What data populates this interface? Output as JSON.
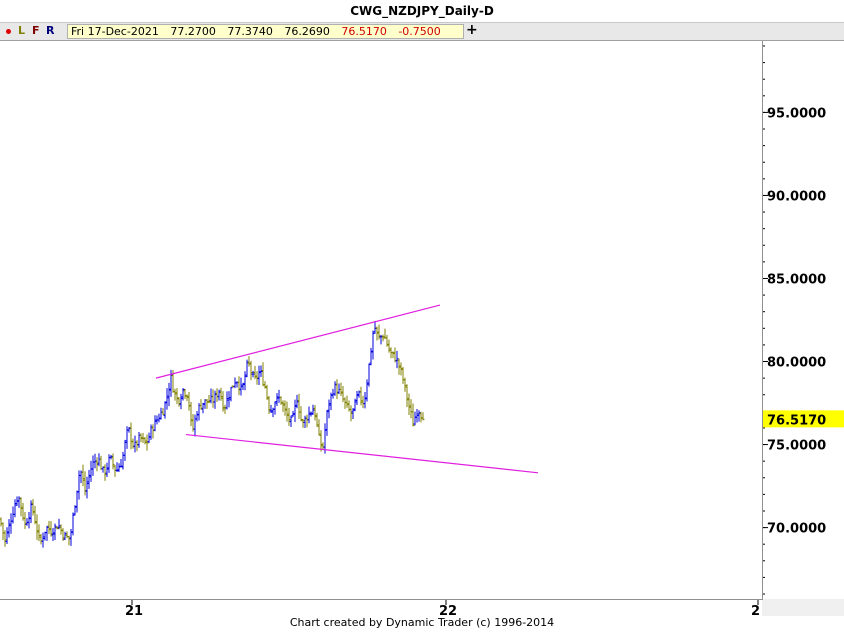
{
  "window": {
    "title": "CWG_NZDJPY_Daily-D"
  },
  "info_bar": {
    "buttons": [
      {
        "label": "L",
        "color": "#808000"
      },
      {
        "label": "F",
        "color": "#800000"
      },
      {
        "label": "R",
        "color": "#000080"
      }
    ],
    "dot_color": "#e00000",
    "date": "Fri 17-Dec-2021",
    "open": "77.2700",
    "high": "77.3740",
    "low": "76.2690",
    "close": "76.5170",
    "change": "-0.7500",
    "plus_label": "+"
  },
  "footer": {
    "text": "Chart created by Dynamic Trader  (c) 1996-2014"
  },
  "chart_data": {
    "type": "ohlc",
    "title": "CWG_NZDJPY_Daily-D",
    "y_ticks": [
      "95.0000",
      "90.0000",
      "85.0000",
      "80.0000",
      "75.0000",
      "70.0000"
    ],
    "y_range": [
      65.7,
      99.3
    ],
    "x_ticks": [
      "21",
      "22",
      "2"
    ],
    "last_price": "76.5170",
    "last_price_color": "#ffff00",
    "up_bar_color": "#0000dd",
    "down_bar_color": "#808000",
    "trendline_color": "#e020e0",
    "anchors": [
      [
        0,
        70.5
      ],
      [
        5,
        69.2
      ],
      [
        12,
        70.8
      ],
      [
        18,
        72.0
      ],
      [
        25,
        70.2
      ],
      [
        32,
        71.3
      ],
      [
        40,
        69.0
      ],
      [
        46,
        70.0
      ],
      [
        52,
        69.8
      ],
      [
        58,
        70.2
      ],
      [
        64,
        69.5
      ],
      [
        70,
        69.3
      ],
      [
        75,
        71.5
      ],
      [
        80,
        73.6
      ],
      [
        85,
        72.2
      ],
      [
        92,
        73.8
      ],
      [
        98,
        74.2
      ],
      [
        104,
        73.2
      ],
      [
        110,
        74.2
      ],
      [
        116,
        73.4
      ],
      [
        122,
        74.0
      ],
      [
        128,
        76.0
      ],
      [
        134,
        74.8
      ],
      [
        140,
        75.4
      ],
      [
        146,
        75.0
      ],
      [
        152,
        76.0
      ],
      [
        158,
        76.6
      ],
      [
        164,
        77.2
      ],
      [
        168,
        78.2
      ],
      [
        171,
        79.0
      ],
      [
        174,
        78.2
      ],
      [
        178,
        77.6
      ],
      [
        183,
        78.3
      ],
      [
        188,
        78.0
      ],
      [
        192,
        75.7
      ],
      [
        197,
        77.0
      ],
      [
        202,
        77.5
      ],
      [
        208,
        77.6
      ],
      [
        214,
        77.7
      ],
      [
        219,
        78.3
      ],
      [
        224,
        77.2
      ],
      [
        230,
        78.2
      ],
      [
        236,
        79.0
      ],
      [
        242,
        78.2
      ],
      [
        248,
        80.0
      ],
      [
        254,
        78.8
      ],
      [
        260,
        79.4
      ],
      [
        265,
        78.5
      ],
      [
        270,
        77.0
      ],
      [
        275,
        77.6
      ],
      [
        280,
        77.8
      ],
      [
        286,
        76.8
      ],
      [
        292,
        76.3
      ],
      [
        297,
        77.8
      ],
      [
        302,
        76.2
      ],
      [
        308,
        76.8
      ],
      [
        314,
        77.2
      ],
      [
        320,
        75.0
      ],
      [
        323,
        74.9
      ],
      [
        328,
        77.3
      ],
      [
        334,
        78.5
      ],
      [
        340,
        78.1
      ],
      [
        346,
        77.3
      ],
      [
        352,
        76.8
      ],
      [
        358,
        78.0
      ],
      [
        364,
        77.5
      ],
      [
        370,
        80.2
      ],
      [
        374,
        82.2
      ],
      [
        378,
        81.4
      ],
      [
        384,
        81.6
      ],
      [
        390,
        80.5
      ],
      [
        396,
        80.2
      ],
      [
        402,
        79.2
      ],
      [
        408,
        77.5
      ],
      [
        413,
        76.3
      ],
      [
        418,
        77.2
      ],
      [
        424,
        76.5
      ]
    ],
    "trendlines": [
      {
        "x1": 156,
        "y1": 79.0,
        "x2": 440,
        "y2": 83.4
      },
      {
        "x1": 186,
        "y1": 75.6,
        "x2": 538,
        "y2": 73.3
      }
    ]
  }
}
